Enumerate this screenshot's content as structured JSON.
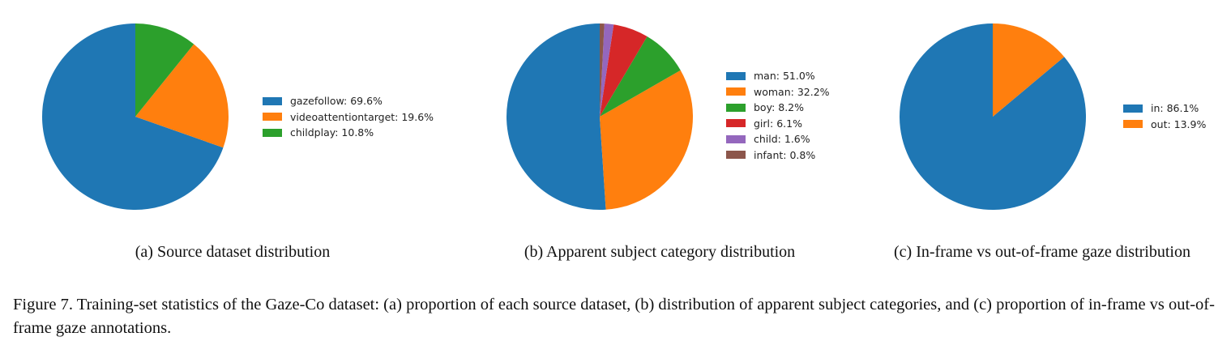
{
  "chart_data": [
    {
      "type": "pie",
      "title": "",
      "caption": "(a) Source dataset distribution",
      "legend_position": "right",
      "startangle_deg": 90,
      "direction": "counterclockwise",
      "slices": [
        {
          "label": "gazefollow: 69.6%",
          "value": 69.6,
          "color": "#1f77b4"
        },
        {
          "label": "videoattentiontarget: 19.6%",
          "value": 19.6,
          "color": "#ff7f0e"
        },
        {
          "label": "childplay: 10.8%",
          "value": 10.8,
          "color": "#2ca02c"
        }
      ]
    },
    {
      "type": "pie",
      "title": "",
      "caption": "(b) Apparent subject category distribution",
      "legend_position": "right",
      "startangle_deg": 90,
      "direction": "counterclockwise",
      "slices": [
        {
          "label": "man: 51.0%",
          "value": 51.0,
          "color": "#1f77b4"
        },
        {
          "label": "woman: 32.2%",
          "value": 32.2,
          "color": "#ff7f0e"
        },
        {
          "label": "boy: 8.2%",
          "value": 8.2,
          "color": "#2ca02c"
        },
        {
          "label": "girl: 6.1%",
          "value": 6.1,
          "color": "#d62728"
        },
        {
          "label": "child: 1.6%",
          "value": 1.6,
          "color": "#9467bd"
        },
        {
          "label": "infant: 0.8%",
          "value": 0.8,
          "color": "#8c564b"
        }
      ]
    },
    {
      "type": "pie",
      "title": "",
      "caption": "(c) In-frame vs out-of-frame gaze distribution",
      "legend_position": "right",
      "startangle_deg": 90,
      "direction": "counterclockwise",
      "slices": [
        {
          "label": "in: 86.1%",
          "value": 86.1,
          "color": "#1f77b4"
        },
        {
          "label": "out: 13.9%",
          "value": 13.9,
          "color": "#ff7f0e"
        }
      ]
    }
  ],
  "figure_caption": "Figure 7. Training-set statistics of the Gaze-Co dataset: (a) proportion of each source dataset, (b) distribution of apparent subject categories, and (c) proportion of in-frame vs out-of-frame gaze annotations."
}
